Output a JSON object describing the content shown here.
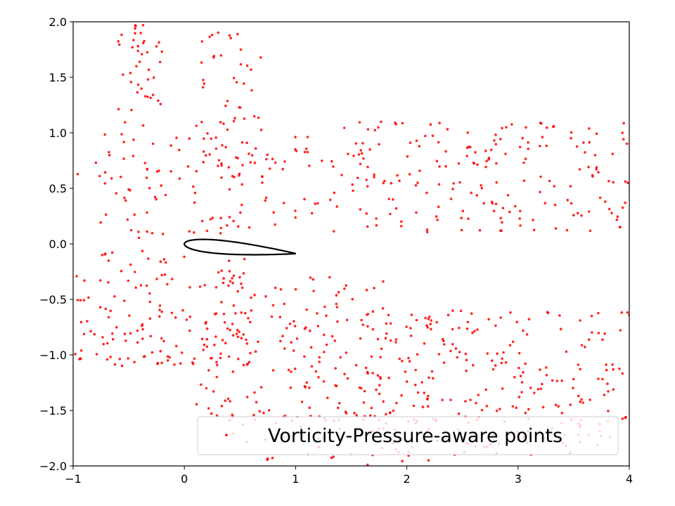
{
  "chart_data": {
    "type": "scatter",
    "title": "",
    "xlabel": "",
    "ylabel": "",
    "xlim": [
      -1,
      4
    ],
    "ylim": [
      -2,
      2
    ],
    "x_ticks": [
      "−1",
      "0",
      "1",
      "2",
      "3",
      "4"
    ],
    "y_ticks": [
      "−2.0",
      "−1.5",
      "−1.0",
      "−0.5",
      "0.0",
      "0.5",
      "1.0",
      "1.5",
      "2.0"
    ],
    "grid": false,
    "legend": {
      "position": "lower-right",
      "entries": [
        "Vorticity-Pressure-aware points"
      ]
    },
    "point_color": "#ff0000",
    "airfoil_color": "#000000",
    "airfoil": {
      "shape": "NACA-like symmetric airfoil",
      "chord_x": [
        0.0,
        1.0
      ],
      "max_thickness": 0.12,
      "angle_deg": 5
    },
    "series": [
      {
        "name": "Vorticity-Pressure-aware points",
        "regions": [
          {
            "desc": "upper-left column",
            "x": [
              -0.6,
              -0.2
            ],
            "y": [
              1.2,
              2.0
            ],
            "count": 40
          },
          {
            "desc": "upper plume",
            "x": [
              0.1,
              0.7
            ],
            "y": [
              0.6,
              2.0
            ],
            "count": 55
          },
          {
            "desc": "leading edge upper",
            "x": [
              -1.0,
              0.6
            ],
            "y": [
              0.05,
              1.1
            ],
            "count": 90
          },
          {
            "desc": "upper wake band",
            "x": [
              0.7,
              4.0
            ],
            "y": [
              0.1,
              1.1
            ],
            "count": 230
          },
          {
            "desc": "leading edge lower",
            "x": [
              -1.0,
              0.6
            ],
            "y": [
              -1.1,
              -0.05
            ],
            "count": 140
          },
          {
            "desc": "lower near wake",
            "x": [
              0.1,
              1.8
            ],
            "y": [
              -1.6,
              -0.3
            ],
            "count": 160
          },
          {
            "desc": "lower wake band",
            "x": [
              1.6,
              4.0
            ],
            "y": [
              -1.9,
              -0.6
            ],
            "count": 260
          },
          {
            "desc": "bottom scatter",
            "x": [
              0.4,
              2.2
            ],
            "y": [
              -2.0,
              -1.4
            ],
            "count": 50
          }
        ]
      }
    ]
  }
}
